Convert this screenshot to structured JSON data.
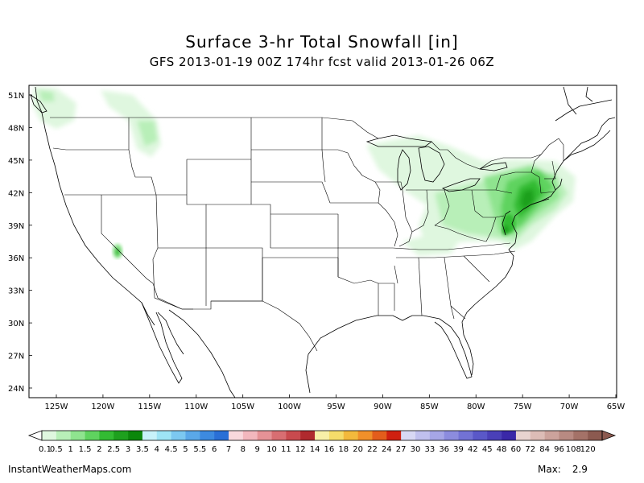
{
  "title": "Surface 3-hr Total Snowfall [in]",
  "subtitle": "GFS 2013-01-19 00Z 174hr fcst valid 2013-01-26 06Z",
  "lat_labels": [
    "51N",
    "48N",
    "45N",
    "42N",
    "39N",
    "36N",
    "33N",
    "30N",
    "27N",
    "24N"
  ],
  "lat_values": [
    51,
    48,
    45,
    42,
    39,
    36,
    33,
    30,
    27,
    24
  ],
  "lon_labels": [
    "125W",
    "120W",
    "115W",
    "110W",
    "105W",
    "100W",
    "95W",
    "90W",
    "85W",
    "80W",
    "75W",
    "70W",
    "65W"
  ],
  "lon_values": [
    -125,
    -120,
    -115,
    -110,
    -105,
    -100,
    -95,
    -90,
    -85,
    -80,
    -75,
    -70,
    -65
  ],
  "colorbar": {
    "labels": [
      "0.1",
      "0.5",
      "1",
      "1.5",
      "2",
      "2.5",
      "3",
      "3.5",
      "4",
      "4.5",
      "5",
      "5.5",
      "6",
      "7",
      "8",
      "9",
      "10",
      "11",
      "12",
      "14",
      "16",
      "18",
      "20",
      "22",
      "24",
      "27",
      "30",
      "33",
      "36",
      "39",
      "42",
      "45",
      "48",
      "60",
      "72",
      "84",
      "96",
      "108",
      "120"
    ],
    "colors": [
      "#dff7df",
      "#b8efb8",
      "#8fe48f",
      "#5fd35f",
      "#33bb33",
      "#1ea01e",
      "#0b870b",
      "#c8f2fa",
      "#9ee4f5",
      "#7cc8f0",
      "#5aa8e8",
      "#3d8ae0",
      "#2a6fd6",
      "#f8d8dc",
      "#f2b7bd",
      "#e59296",
      "#d86e72",
      "#c84a4e",
      "#b02a2e",
      "#f8f0a8",
      "#f5dc6a",
      "#f3b93c",
      "#f0902a",
      "#e35d1c",
      "#cf2010",
      "#d8d8f4",
      "#c0c0ee",
      "#a6a6e6",
      "#8c8cde",
      "#7272d4",
      "#5a58c8",
      "#4a40b8",
      "#3a28a8",
      "#e8d4d0",
      "#dcbcb6",
      "#cca39c",
      "#b88a82",
      "#a47268",
      "#8c5a50"
    ]
  },
  "footer": {
    "site": "InstantWeatherMaps.com",
    "max_label": "Max:",
    "max_value": "2.9"
  }
}
